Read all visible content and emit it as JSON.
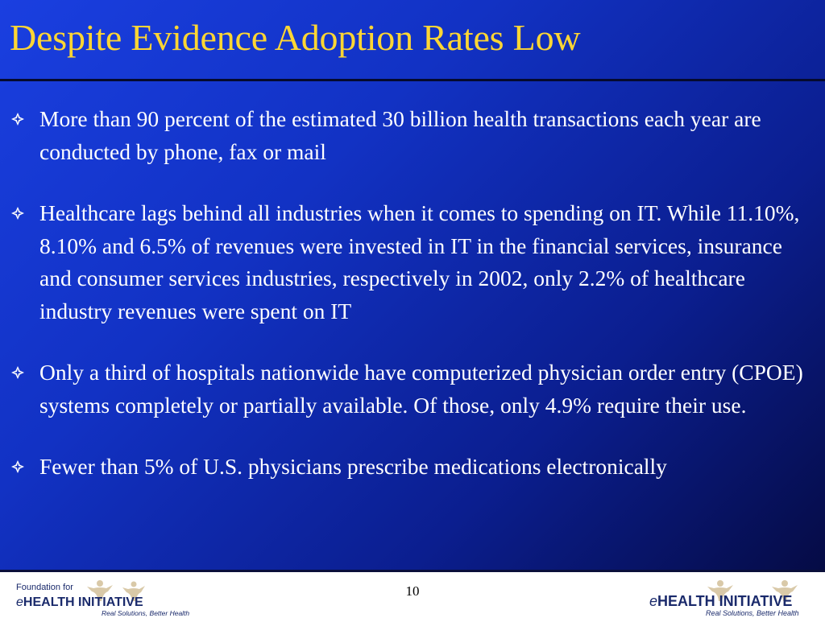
{
  "slide": {
    "title": "Despite Evidence Adoption Rates Low",
    "bullets": [
      "More than 90 percent of the estimated 30 billion health transactions each year are conducted by phone, fax or mail",
      "Healthcare lags behind all industries when it comes to spending on IT. While 11.10%, 8.10% and 6.5% of revenues were invested in IT in the financial services, insurance and consumer services industries, respectively in 2002, only 2.2% of healthcare industry revenues were spent on IT",
      "Only a third of hospitals nationwide have computerized physician order entry (CPOE) systems completely or partially available. Of those, only 4.9% require their use.",
      "Fewer than 5% of U.S. physicians prescribe medications electronically"
    ]
  },
  "footer": {
    "page_number": "10",
    "logo_left": {
      "line1": "Foundation for",
      "brand_e": "e",
      "brand_main": "HEALTH INITIATIVE",
      "tagline": "Real Solutions, Better Health"
    },
    "logo_right": {
      "brand_e": "e",
      "brand_main": "HEALTH INITIATIVE",
      "tagline": "Real Solutions, Better Health"
    }
  },
  "colors": {
    "title": "#ffd633",
    "background_light": "#1a3fe0",
    "background_dark": "#050b45",
    "text": "#ffffff",
    "logo_text": "#1a2a6b",
    "logo_figures": "#d9c9a8"
  }
}
